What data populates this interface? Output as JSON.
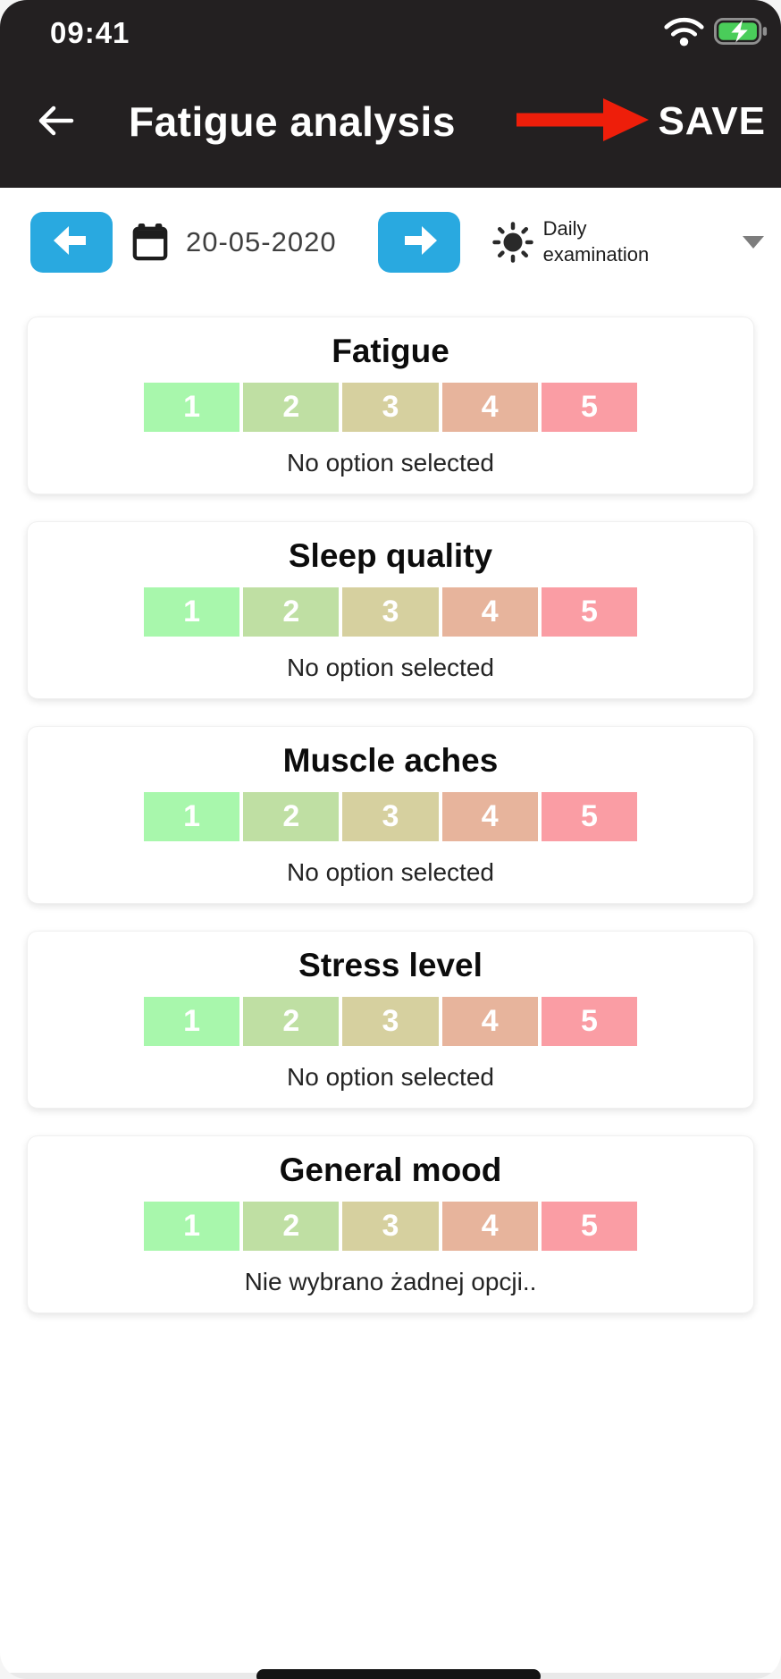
{
  "status_bar": {
    "time": "09:41"
  },
  "header": {
    "title": "Fatigue analysis",
    "save_label": "SAVE"
  },
  "date_bar": {
    "date": "20-05-2020",
    "exam_type_line1": "Daily",
    "exam_type_line2": "examination"
  },
  "cards": [
    {
      "title": "Fatigue",
      "status": "No option selected"
    },
    {
      "title": "Sleep quality",
      "status": "No option selected"
    },
    {
      "title": "Muscle aches",
      "status": "No option selected"
    },
    {
      "title": "Stress level",
      "status": "No option selected"
    },
    {
      "title": "General mood",
      "status": "Nie wybrano żadnej opcji.."
    }
  ],
  "rating": {
    "options": [
      "1",
      "2",
      "3",
      "4",
      "5"
    ],
    "colors": [
      "#a8f7ac",
      "#bfdfa3",
      "#d6d09f",
      "#e7b49c",
      "#fa9da4"
    ]
  },
  "icons": {
    "wifi": "wifi-icon",
    "battery": "battery-charging-icon",
    "back": "arrow-left-icon",
    "previous": "arrow-left-icon",
    "next": "arrow-right-icon",
    "calendar": "calendar-icon",
    "exam_type": "sun-icon",
    "dropdown": "chevron-down-icon",
    "annotation": "red-arrow-icon"
  },
  "colors": {
    "header_bg": "#232021",
    "accent_blue": "#29a9e0",
    "battery_green": "#4acd5a",
    "annotation_red": "#ee1e0a"
  }
}
